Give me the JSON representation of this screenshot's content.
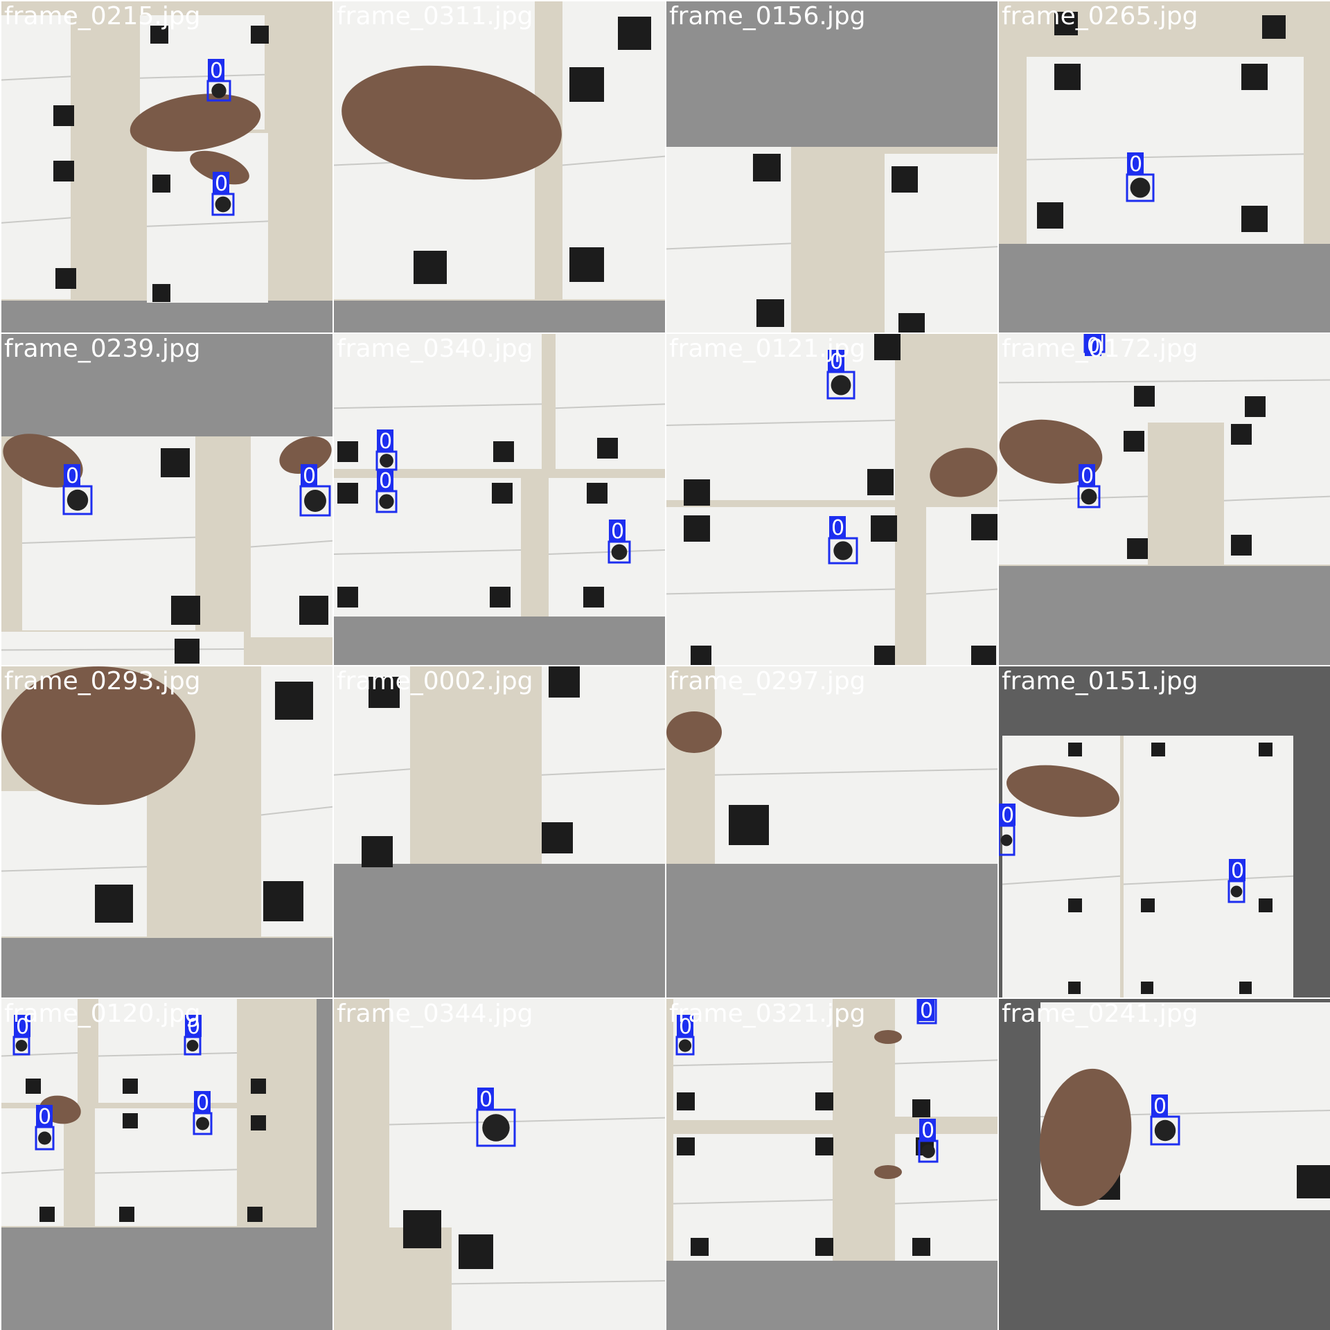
{
  "mosaic": {
    "tiles": [
      {
        "filename": "frame_0215.jpg",
        "detections": [
          "0",
          "0"
        ]
      },
      {
        "filename": "frame_0311.jpg",
        "detections": []
      },
      {
        "filename": "frame_0156.jpg",
        "detections": []
      },
      {
        "filename": "frame_0265.jpg",
        "detections": [
          "0"
        ]
      },
      {
        "filename": "frame_0239.jpg",
        "detections": [
          "0",
          "0"
        ]
      },
      {
        "filename": "frame_0340.jpg",
        "detections": [
          "0",
          "0",
          "0"
        ]
      },
      {
        "filename": "frame_0121.jpg",
        "detections": [
          "0",
          "0"
        ]
      },
      {
        "filename": "frame_0172.jpg",
        "detections": [
          "0",
          "0"
        ]
      },
      {
        "filename": "frame_0293.jpg",
        "detections": []
      },
      {
        "filename": "frame_0002.jpg",
        "detections": []
      },
      {
        "filename": "frame_0297.jpg",
        "detections": []
      },
      {
        "filename": "frame_0151.jpg",
        "detections": [
          "0",
          "0"
        ]
      },
      {
        "filename": "frame_0120.jpg",
        "detections": [
          "0",
          "0",
          "0",
          "0"
        ]
      },
      {
        "filename": "frame_0344.jpg",
        "detections": [
          "0"
        ]
      },
      {
        "filename": "frame_0321.jpg",
        "detections": [
          "0",
          "0",
          "0"
        ]
      },
      {
        "filename": "frame_0241.jpg",
        "detections": [
          "0"
        ]
      }
    ]
  },
  "colors": {
    "box": "#1d2ef0",
    "paper": "#f2f2f0",
    "wood": "#d9d3c4",
    "marker": "#1c1c1c",
    "pad_light": "#8f8f8f",
    "pad_dark": "#5e5e5e",
    "skin": "#7a5a48"
  }
}
